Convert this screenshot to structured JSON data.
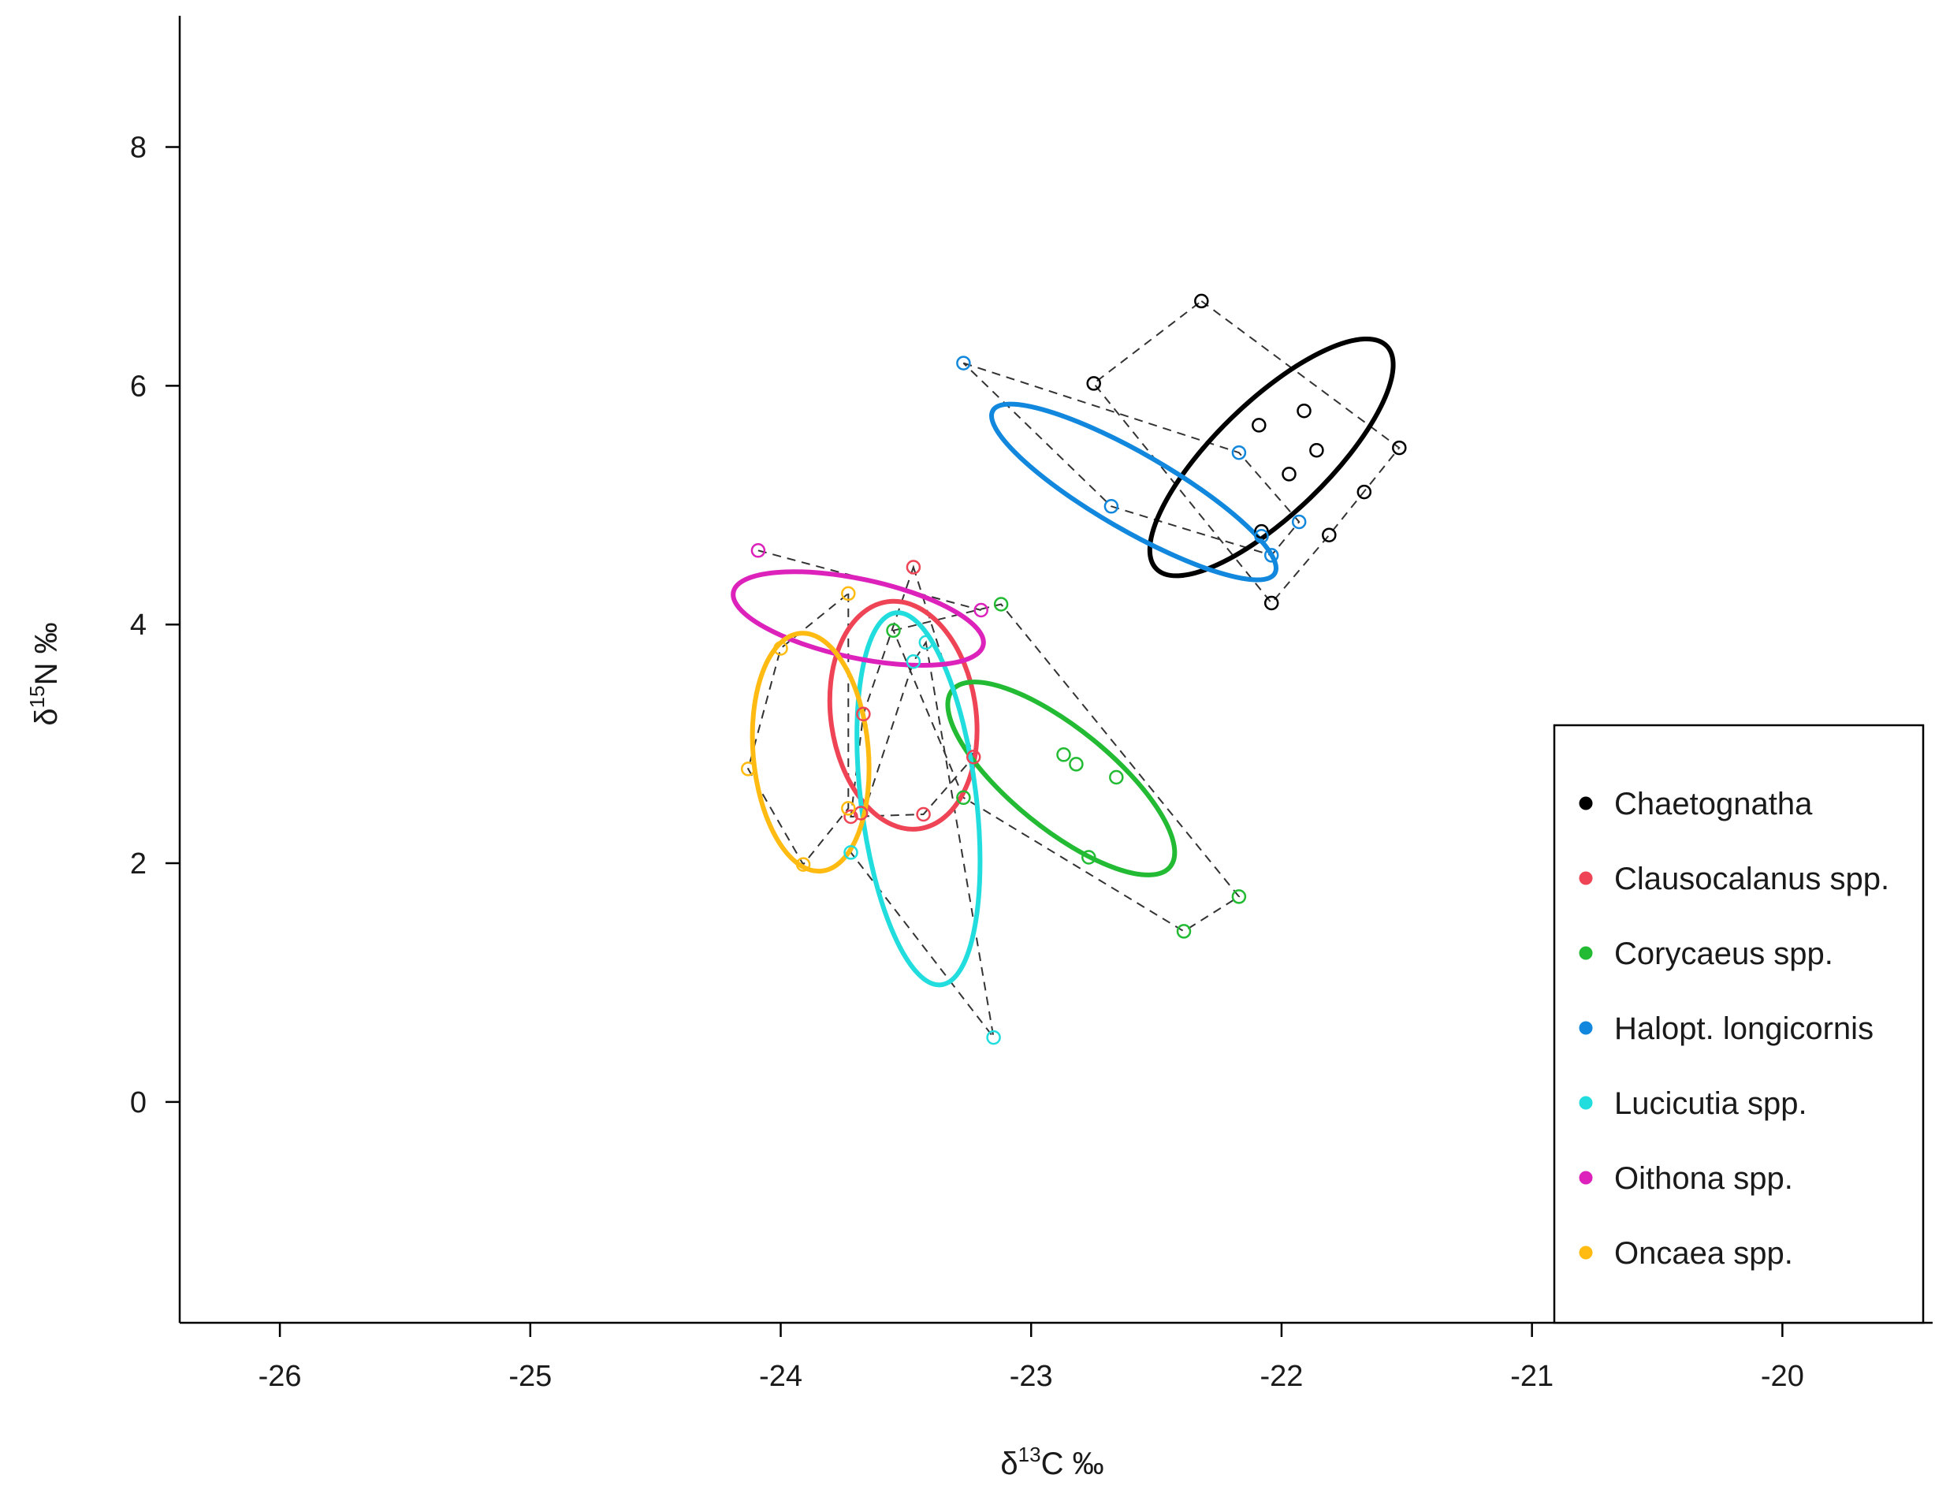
{
  "chart_data": {
    "type": "scatter",
    "xlabel": {
      "prefix": "δ",
      "sup": "13",
      "main": "C ‰"
    },
    "ylabel": {
      "prefix": "δ",
      "sup": "15",
      "main": "N ‰"
    },
    "xlim": [
      -26.4,
      -19.4
    ],
    "ylim": [
      -1.85,
      9.1
    ],
    "xticks": [
      -26,
      -25,
      -24,
      -23,
      -22,
      -21,
      -20
    ],
    "yticks": [
      0,
      2,
      4,
      6,
      8
    ],
    "grid": false,
    "legend_position": "bottom-right",
    "series": [
      {
        "name": "Chaetognatha",
        "color": "#000000",
        "points": [
          [
            -22.32,
            6.71
          ],
          [
            -22.75,
            6.02
          ],
          [
            -21.53,
            5.48
          ],
          [
            -22.09,
            5.67
          ],
          [
            -21.91,
            5.79
          ],
          [
            -21.86,
            5.46
          ],
          [
            -21.97,
            5.26
          ],
          [
            -21.67,
            5.11
          ],
          [
            -21.81,
            4.75
          ],
          [
            -22.08,
            4.78
          ],
          [
            -22.04,
            4.18
          ]
        ],
        "hull": [
          [
            -22.32,
            6.71
          ],
          [
            -21.53,
            5.48
          ],
          [
            -21.81,
            4.75
          ],
          [
            -22.04,
            4.18
          ],
          [
            -22.75,
            6.02
          ]
        ],
        "ellipse": {
          "cx": -22.04,
          "cy": 5.4,
          "rx": 0.64,
          "ry": 0.47,
          "rotation_deg": -44
        }
      },
      {
        "name": "Clausocalanus spp.",
        "color": "#ee4455",
        "points": [
          [
            -23.47,
            4.48
          ],
          [
            -23.23,
            2.89
          ],
          [
            -23.67,
            3.25
          ],
          [
            -23.72,
            2.39
          ],
          [
            -23.43,
            2.41
          ],
          [
            -23.68,
            2.42
          ]
        ],
        "hull": [
          [
            -23.47,
            4.48
          ],
          [
            -23.23,
            2.89
          ],
          [
            -23.43,
            2.41
          ],
          [
            -23.72,
            2.39
          ],
          [
            -23.67,
            3.25
          ]
        ],
        "ellipse": {
          "cx": -23.51,
          "cy": 3.24,
          "rx": 0.29,
          "ry": 0.96,
          "rotation_deg": -8
        }
      },
      {
        "name": "Corycaeus spp.",
        "color": "#22bb33",
        "points": [
          [
            -23.12,
            4.17
          ],
          [
            -23.55,
            3.95
          ],
          [
            -22.87,
            2.91
          ],
          [
            -22.82,
            2.83
          ],
          [
            -22.66,
            2.72
          ],
          [
            -23.27,
            2.55
          ],
          [
            -22.77,
            2.05
          ],
          [
            -22.17,
            1.72
          ],
          [
            -22.39,
            1.43
          ]
        ],
        "hull": [
          [
            -23.55,
            3.95
          ],
          [
            -23.12,
            4.17
          ],
          [
            -22.17,
            1.72
          ],
          [
            -22.39,
            1.43
          ],
          [
            -23.27,
            2.55
          ]
        ],
        "ellipse": {
          "cx": -22.88,
          "cy": 2.71,
          "rx": 0.56,
          "ry": 0.42,
          "rotation_deg": 39
        }
      },
      {
        "name": "Halopt. longicornis",
        "color": "#1188dd",
        "points": [
          [
            -23.27,
            6.19
          ],
          [
            -22.17,
            5.44
          ],
          [
            -22.68,
            4.99
          ],
          [
            -21.93,
            4.86
          ],
          [
            -22.08,
            4.74
          ],
          [
            -22.04,
            4.58
          ]
        ],
        "hull": [
          [
            -23.27,
            6.19
          ],
          [
            -22.17,
            5.44
          ],
          [
            -21.93,
            4.86
          ],
          [
            -22.04,
            4.58
          ],
          [
            -22.68,
            4.99
          ]
        ],
        "ellipse": {
          "cx": -22.59,
          "cy": 5.11,
          "rx": 0.65,
          "ry": 0.32,
          "rotation_deg": 30
        }
      },
      {
        "name": "Lucicutia spp.",
        "color": "#22dddd",
        "points": [
          [
            -23.42,
            3.85
          ],
          [
            -23.47,
            3.69
          ],
          [
            -23.72,
            2.09
          ],
          [
            -23.15,
            0.54
          ]
        ],
        "hull": [
          [
            -23.42,
            3.85
          ],
          [
            -23.15,
            0.54
          ],
          [
            -23.72,
            2.09
          ],
          [
            -23.47,
            3.69
          ]
        ],
        "ellipse": {
          "cx": -23.45,
          "cy": 2.54,
          "rx": 0.23,
          "ry": 1.57,
          "rotation_deg": -7
        }
      },
      {
        "name": "Oithona spp.",
        "color": "#dd22bb",
        "points": [
          [
            -24.09,
            4.62
          ],
          [
            -23.2,
            4.12
          ]
        ],
        "hull": [
          [
            -24.09,
            4.62
          ],
          [
            -23.2,
            4.12
          ]
        ],
        "ellipse": {
          "cx": -23.69,
          "cy": 4.05,
          "rx": 0.51,
          "ry": 0.33,
          "rotation_deg": 12
        }
      },
      {
        "name": "Oncaea spp.",
        "color": "#ffbb11",
        "points": [
          [
            -23.73,
            4.26
          ],
          [
            -24.0,
            3.8
          ],
          [
            -24.13,
            2.79
          ],
          [
            -23.73,
            2.46
          ],
          [
            -23.91,
            1.99
          ]
        ],
        "hull": [
          [
            -23.73,
            4.26
          ],
          [
            -23.73,
            2.46
          ],
          [
            -23.91,
            1.99
          ],
          [
            -24.13,
            2.79
          ],
          [
            -24.0,
            3.8
          ]
        ],
        "ellipse": {
          "cx": -23.88,
          "cy": 2.93,
          "rx": 0.23,
          "ry": 1.0,
          "rotation_deg": -5
        }
      }
    ]
  }
}
